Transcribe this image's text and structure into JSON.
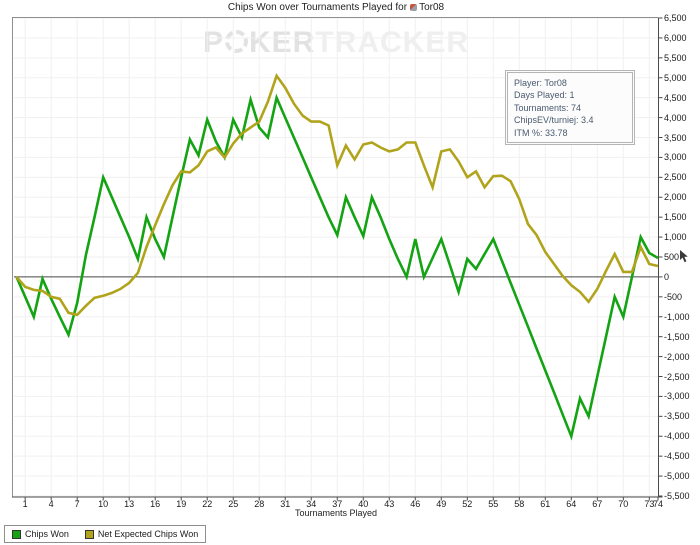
{
  "header": {
    "title_prefix": "Chips Won over Tournaments Played for",
    "player_name": "Tor08",
    "player_icon": "player-icon"
  },
  "watermark": {
    "p": "P",
    "ker": "KER",
    "tracker": "TRACKER",
    "chip_icon": "poker-chip-icon"
  },
  "stats_box": {
    "lines": [
      "Player: Tor08",
      "Days Played: 1",
      "Tournaments: 74",
      "ChipsEV/turniej: 3.4",
      "ITM %: 33.78"
    ]
  },
  "legend": {
    "items": [
      {
        "label": "Chips Won",
        "color": "#13a313"
      },
      {
        "label": "Net Expected Chips Won",
        "color": "#b1a41c"
      }
    ]
  },
  "colors": {
    "chips_won_line": "#13a313",
    "net_expected_line": "#b1a41c",
    "gridline": "#f2efef",
    "axis": "#4a4a4a",
    "frame": "#8f8f8f",
    "zero_line": "#4a4a4a",
    "watermark_strong": "#e2e2e2",
    "watermark_light": "#efefef"
  },
  "chart_data": {
    "type": "line",
    "title": "Chips Won over Tournaments Played for Tor08",
    "xlabel": "Tournaments Played",
    "ylabel": "",
    "legend_position": "bottom-left",
    "y_axis_side": "right",
    "grid": true,
    "xlim": [
      0,
      74
    ],
    "ylim": [
      -5500,
      6500
    ],
    "y_tick_step": 500,
    "y_tick_labels": [
      "6,500",
      "6,000",
      "5,500",
      "5,000",
      "4,500",
      "4,000",
      "3,500",
      "3,000",
      "2,500",
      "2,000",
      "1,500",
      "1,000",
      "500",
      "0",
      "-500",
      "-1,000",
      "-1,500",
      "-2,000",
      "-2,500",
      "-3,000",
      "-3,500",
      "-4,000",
      "-4,500",
      "-5,000",
      "-5,500"
    ],
    "x_ticks": [
      1,
      4,
      7,
      10,
      13,
      16,
      19,
      22,
      25,
      28,
      31,
      34,
      37,
      40,
      43,
      46,
      49,
      52,
      55,
      58,
      61,
      64,
      67,
      70,
      73,
      74
    ],
    "x_start": 0,
    "series": [
      {
        "name": "Chips Won",
        "color": "#13a313",
        "values": [
          0,
          -500,
          -1000,
          -50,
          -550,
          -1000,
          -1450,
          -650,
          550,
          1500,
          2500,
          2000,
          1500,
          1000,
          450,
          1500,
          950,
          500,
          1500,
          2500,
          3450,
          3050,
          3950,
          3400,
          3000,
          3950,
          3500,
          4450,
          3750,
          3500,
          4500,
          4000,
          3500,
          3000,
          2500,
          2000,
          1500,
          1050,
          2000,
          1500,
          1025,
          2000,
          1500,
          950,
          450,
          0,
          950,
          0,
          475,
          950,
          300,
          -375,
          450,
          200,
          575,
          950,
          400,
          -150,
          -700,
          -1250,
          -1800,
          -2350,
          -2900,
          -3450,
          -4000,
          -3050,
          -3500,
          -2500,
          -1500,
          -500,
          -1000,
          0,
          1000,
          600,
          475
        ]
      },
      {
        "name": "Net Expected Chips Won",
        "color": "#b1a41c",
        "values": [
          0,
          -250,
          -325,
          -350,
          -500,
          -550,
          -900,
          -950,
          -725,
          -525,
          -475,
          -400,
          -300,
          -150,
          100,
          750,
          1300,
          1825,
          2300,
          2650,
          2625,
          2800,
          3150,
          3250,
          3000,
          3350,
          3600,
          3750,
          3900,
          4400,
          5050,
          4750,
          4350,
          4050,
          3900,
          3900,
          3800,
          2800,
          3300,
          2950,
          3325,
          3375,
          3250,
          3150,
          3200,
          3375,
          3375,
          2800,
          2250,
          3150,
          3200,
          2900,
          2500,
          2650,
          2250,
          2530,
          2540,
          2400,
          1950,
          1325,
          1050,
          625,
          325,
          25,
          -210,
          -375,
          -625,
          -300,
          150,
          575,
          125,
          125,
          750,
          325,
          275
        ]
      }
    ]
  }
}
